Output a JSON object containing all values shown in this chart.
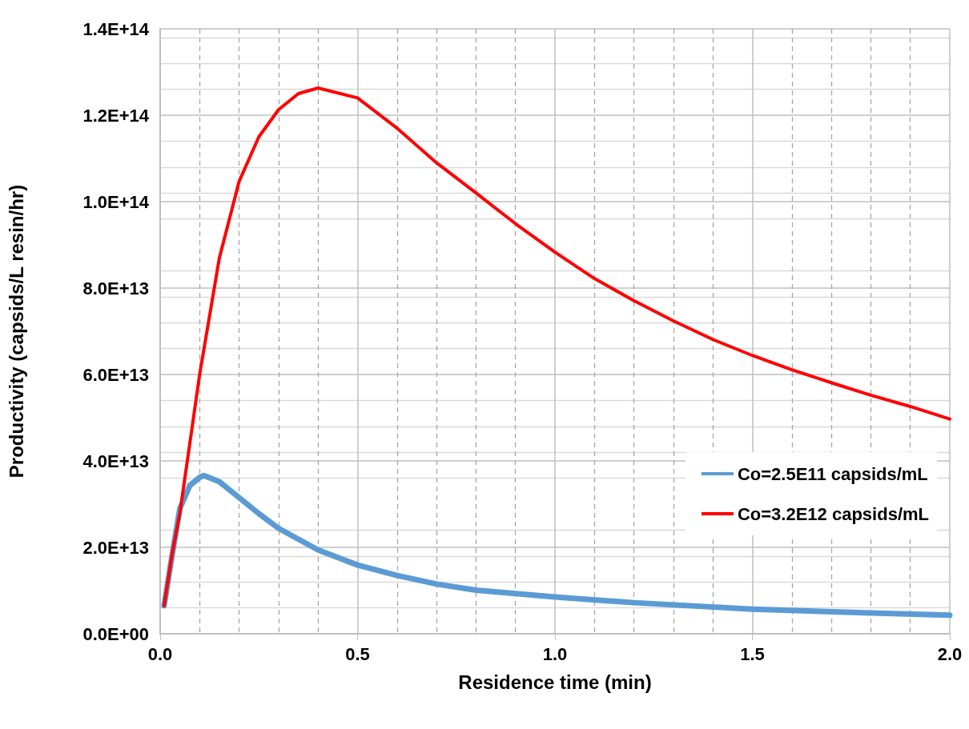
{
  "chart_data": {
    "type": "line",
    "xlabel": "Residence time (min)",
    "ylabel": "Productivity (capsids/L resin/hr)",
    "xlim": [
      0,
      2
    ],
    "xticks": [
      {
        "value": 0,
        "label": "0.0"
      },
      0.5,
      {
        "value": 1,
        "label": "1.0"
      },
      1.5,
      {
        "value": 2,
        "label": "2.0"
      }
    ],
    "ylim": [
      0,
      140000000000000.0
    ],
    "yticks": [
      {
        "value": 0,
        "label": "0.0E+00"
      },
      {
        "value": 20000000000000.0,
        "label": "2.0E+13"
      },
      {
        "value": 40000000000000.0,
        "label": "4.0E+13"
      },
      {
        "value": 60000000000000.0,
        "label": "6.0E+13"
      },
      {
        "value": 80000000000000.0,
        "label": "8.0E+13"
      },
      {
        "value": 100000000000000.0,
        "label": "1.0E+14"
      },
      {
        "value": 120000000000000.0,
        "label": "1.2E+14"
      },
      {
        "value": 140000000000000.0,
        "label": "1.4E+14"
      }
    ],
    "grid": true,
    "legend": "right",
    "marker": "none",
    "line_style": "solid",
    "series": [
      {
        "name": "Co=2.5E11 capsids/mL",
        "color": "#5b9bd5",
        "x": [
          0.01,
          0.03,
          0.05,
          0.075,
          0.1,
          0.111,
          0.15,
          0.2,
          0.25,
          0.3,
          0.4,
          0.5,
          0.6,
          0.7,
          0.8,
          1.0,
          1.2,
          1.5,
          1.8,
          2.0
        ],
        "values": [
          6500000000000.0,
          18000000000000.0,
          29000000000000.0,
          34300000000000.0,
          36200000000000.0,
          36600000000000.0,
          35200000000000.0,
          31500000000000.0,
          27800000000000.0,
          24400000000000.0,
          19400000000000.0,
          15900000000000.0,
          13500000000000.0,
          11500000000000.0,
          10100000000000.0,
          8500000000000.0,
          7200000000000.0,
          5700000000000.0,
          4800000000000.0,
          4300000000000.0
        ]
      },
      {
        "name": "Co=3.2E12 capsids/mL",
        "color": "#ff0000",
        "x": [
          0.01,
          0.03,
          0.05,
          0.1,
          0.15,
          0.2,
          0.25,
          0.3,
          0.35,
          0.4,
          0.5,
          0.6,
          0.7,
          0.8,
          0.9,
          1.0,
          1.1,
          1.2,
          1.3,
          1.4,
          1.5,
          1.6,
          1.7,
          1.8,
          1.9,
          2.0
        ],
        "values": [
          6500000000000.0,
          18300000000000.0,
          28000000000000.0,
          60000000000000.0,
          87000000000000.0,
          104700000000000.0,
          115000000000000.0,
          121300000000000.0,
          125000000000000.0,
          126300000000000.0,
          124000000000000.0,
          117000000000000.0,
          109000000000000.0,
          102000000000000.0,
          94900000000000.0,
          88300000000000.0,
          82200000000000.0,
          77100000000000.0,
          72400000000000.0,
          68100000000000.0,
          64400000000000.0,
          61100000000000.0,
          58100000000000.0,
          55200000000000.0,
          52600000000000.0,
          49700000000000.0
        ]
      }
    ]
  }
}
